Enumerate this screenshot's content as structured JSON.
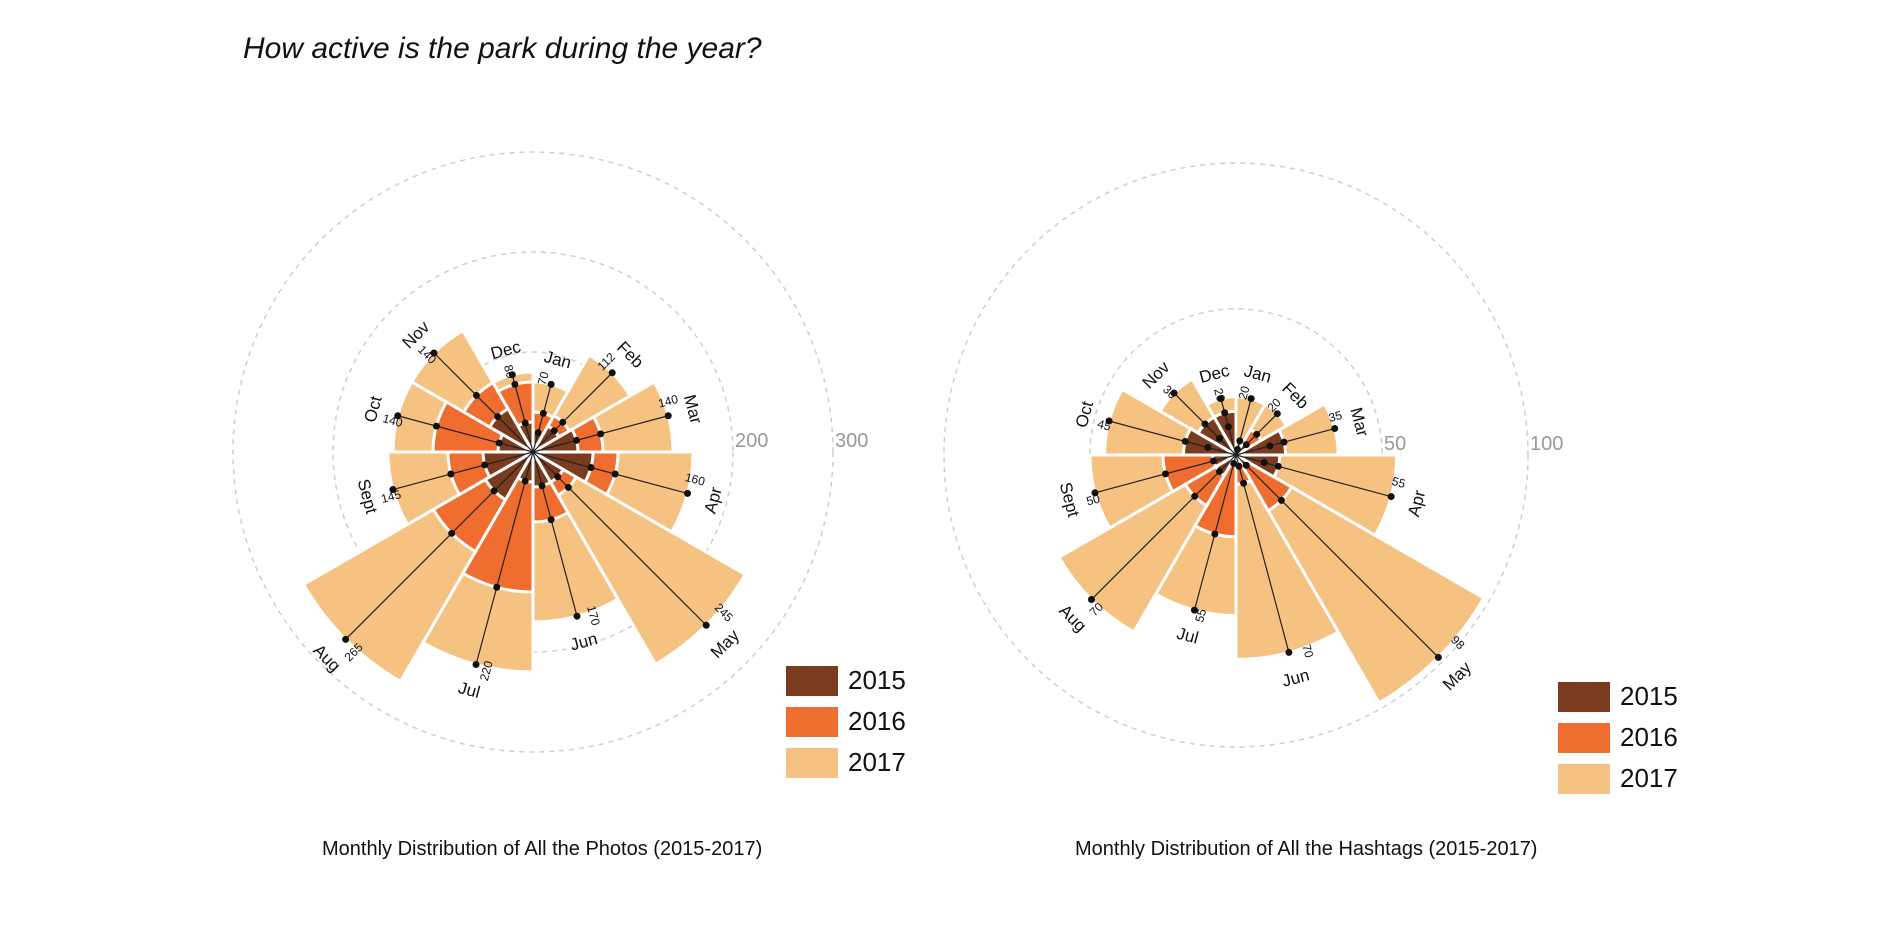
{
  "title": "How active is the park during the year?",
  "colors": {
    "2015": "#7a3b1e",
    "2016": "#ee6d2f",
    "2017": "#f6c282"
  },
  "chart_data": [
    {
      "type": "polar-bar",
      "id": "photos",
      "title": "Monthly Distribution of All the Photos (2015-2017)",
      "categories": [
        "Jan",
        "Feb",
        "Mar",
        "Apr",
        "May",
        "Jun",
        "Jul",
        "Aug",
        "Sept",
        "Oct",
        "Nov",
        "Dec"
      ],
      "series": [
        {
          "name": "2015",
          "values": [
            20,
            30,
            45,
            60,
            35,
            35,
            30,
            55,
            50,
            35,
            50,
            30
          ]
        },
        {
          "name": "2016",
          "values": [
            40,
            42,
            70,
            85,
            50,
            70,
            140,
            115,
            85,
            100,
            80,
            70
          ]
        },
        {
          "name": "2017",
          "values": [
            70,
            112,
            140,
            160,
            245,
            170,
            220,
            265,
            145,
            140,
            140,
            80
          ]
        }
      ],
      "labels_2017": [
        "70",
        "112",
        "140",
        "160",
        "245",
        "170",
        "220",
        "265",
        "145",
        "140",
        "140",
        "80"
      ],
      "rlim": [
        0,
        300
      ],
      "rticks": [
        100,
        200,
        300
      ],
      "legend": "bottom-right",
      "grid": true
    },
    {
      "type": "polar-bar",
      "id": "hashtags",
      "title": "Monthly Distribution of All the Hashtags (2015-2017)",
      "categories": [
        "Jan",
        "Feb",
        "Mar",
        "Apr",
        "May",
        "Jun",
        "Jul",
        "Aug",
        "Sept",
        "Oct",
        "Nov",
        "Dec"
      ],
      "series": [
        {
          "name": "2015",
          "values": [
            2,
            5,
            17,
            15,
            5,
            4,
            3,
            8,
            8,
            18,
            15,
            15
          ]
        },
        {
          "name": "2016",
          "values": [
            5,
            10,
            12,
            10,
            22,
            10,
            28,
            20,
            25,
            10,
            8,
            10
          ]
        },
        {
          "name": "2017",
          "values": [
            20,
            20,
            35,
            55,
            98,
            70,
            55,
            70,
            50,
            45,
            30,
            20
          ]
        }
      ],
      "labels_2017": [
        "20",
        "20",
        "35",
        "55",
        "98",
        "70",
        "55",
        "70",
        "50",
        "45",
        "30",
        "20"
      ],
      "rlim": [
        0,
        100
      ],
      "rticks": [
        50,
        100
      ],
      "legend": "bottom-right",
      "grid": true
    }
  ],
  "legend": [
    {
      "year": "2015"
    },
    {
      "year": "2016"
    },
    {
      "year": "2017"
    }
  ]
}
